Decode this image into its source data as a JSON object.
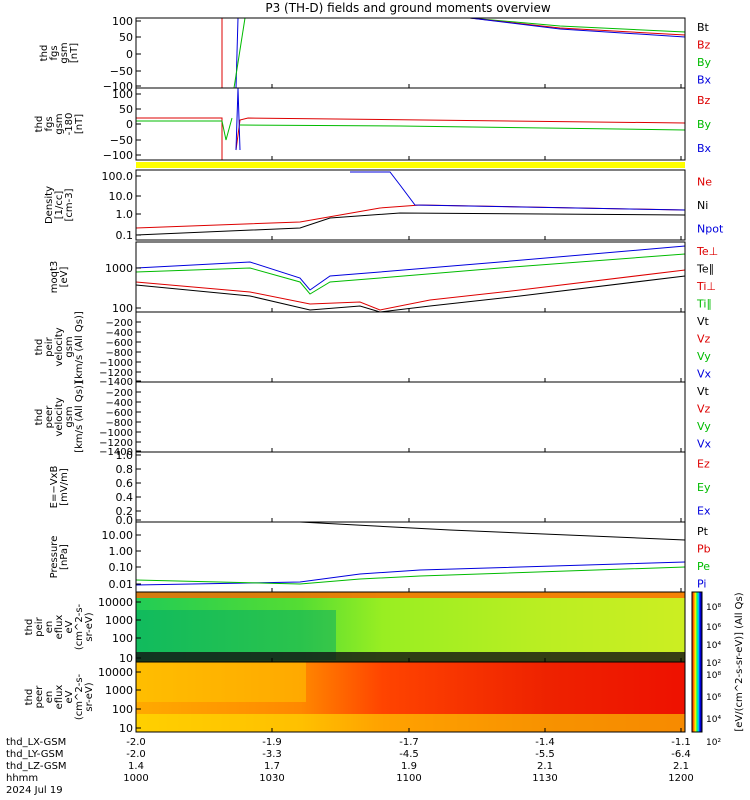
{
  "title": "P3 (TH-D) fields and ground moments overview",
  "chart_data": {
    "type": "line",
    "x_ticks": [
      "1000",
      "1030",
      "1100",
      "1130",
      "1200"
    ],
    "ephemeris": [
      {
        "label": "thd_LX-GSM",
        "values": [
          "-2.0",
          "-1.9",
          "-1.7",
          "-1.4",
          "-1.1"
        ]
      },
      {
        "label": "thd_LY-GSM",
        "values": [
          "-2.0",
          "-3.3",
          "-4.5",
          "-5.5",
          "-6.4"
        ]
      },
      {
        "label": "thd_LZ-GSM",
        "values": [
          "1.4",
          "1.7",
          "1.9",
          "2.1",
          "2.1"
        ]
      },
      {
        "label": "hhmm",
        "values": [
          "1000",
          "1030",
          "1100",
          "1130",
          "1200"
        ]
      }
    ],
    "date_label": "2024 Jul 19",
    "panels": [
      {
        "id": "fgs",
        "ylabel": [
          "thd",
          "fgs",
          "gsm",
          "[nT]"
        ],
        "ticks": [
          "100",
          "50",
          "0",
          "−50",
          "−100"
        ],
        "legend": [
          {
            "t": "Bt",
            "c": "#000000"
          },
          {
            "t": "Bz",
            "c": "#dd0000"
          },
          {
            "t": "By",
            "c": "#00bb00"
          },
          {
            "t": "Bx",
            "c": "#0000dd"
          }
        ]
      },
      {
        "id": "fgs_zoom",
        "ylabel": [
          "thd",
          "fgs",
          "gsm",
          "-180",
          "[nT]"
        ],
        "ticks": [
          "100",
          "50",
          "0",
          "−50",
          "−100"
        ],
        "legend": [
          {
            "t": "Bz",
            "c": "#dd0000"
          },
          {
            "t": "By",
            "c": "#00bb00"
          },
          {
            "t": "Bx",
            "c": "#0000dd"
          }
        ]
      },
      {
        "id": "density",
        "ylabel": [
          "Density",
          "[1/cc]",
          "[cm-3]"
        ],
        "ticks": [
          "100.0",
          "10.0",
          "1.0",
          "0.1"
        ],
        "legend": [
          {
            "t": "Ne",
            "c": "#dd0000"
          },
          {
            "t": "Ni",
            "c": "#000000"
          },
          {
            "t": "Npot",
            "c": "#0000dd"
          }
        ]
      },
      {
        "id": "temperature",
        "ylabel": [
          "moqt3",
          "[eV]"
        ],
        "ticks": [
          "1000",
          "100"
        ],
        "legend": [
          {
            "t": "Te⊥",
            "c": "#dd0000"
          },
          {
            "t": "Te∥",
            "c": "#000000"
          },
          {
            "t": "Ti⊥",
            "c": "#dd0000"
          },
          {
            "t": "Ti∥",
            "c": "#00bb00"
          }
        ]
      },
      {
        "id": "peir_vel",
        "ylabel": [
          "thd",
          "peir",
          "velocity",
          "gsm",
          "[km/s (All Qs)]"
        ],
        "ticks": [
          "−200",
          "−400",
          "−600",
          "−800",
          "−1000",
          "−1200",
          "−1400"
        ],
        "legend": [
          {
            "t": "Vt",
            "c": "#000000"
          },
          {
            "t": "Vz",
            "c": "#dd0000"
          },
          {
            "t": "Vy",
            "c": "#00bb00"
          },
          {
            "t": "Vx",
            "c": "#0000dd"
          }
        ]
      },
      {
        "id": "peer_vel",
        "ylabel": [
          "thd",
          "peer",
          "velocity",
          "gsm",
          "[km/s (All Qs)]"
        ],
        "ticks": [
          "−200",
          "−400",
          "−600",
          "−800",
          "−1000",
          "−1200",
          "−1400"
        ],
        "legend": [
          {
            "t": "Vt",
            "c": "#000000"
          },
          {
            "t": "Vz",
            "c": "#dd0000"
          },
          {
            "t": "Vy",
            "c": "#00bb00"
          },
          {
            "t": "Vx",
            "c": "#0000dd"
          }
        ]
      },
      {
        "id": "efield",
        "ylabel": [
          "E=−VxB",
          "[mV/m]"
        ],
        "ticks": [
          "1.0",
          "0.8",
          "0.6",
          "0.4",
          "0.2",
          "0.0"
        ],
        "legend": [
          {
            "t": "Ez",
            "c": "#dd0000"
          },
          {
            "t": "Ey",
            "c": "#00bb00"
          },
          {
            "t": "Ex",
            "c": "#0000dd"
          }
        ]
      },
      {
        "id": "pressure",
        "ylabel": [
          "Pressure",
          "[nPa]"
        ],
        "ticks": [
          "10.00",
          "1.00",
          "0.10",
          "0.01"
        ],
        "legend": [
          {
            "t": "Pt",
            "c": "#000000"
          },
          {
            "t": "Pb",
            "c": "#dd0000"
          },
          {
            "t": "Pe",
            "c": "#00bb00"
          },
          {
            "t": "Pi",
            "c": "#0000dd"
          }
        ]
      },
      {
        "id": "peir_spec",
        "ylabel": [
          "thd",
          "peir",
          "en",
          "eflux",
          "eV",
          "(cm^2-s-",
          "sr-eV)"
        ],
        "ticks": [
          "10000",
          "1000",
          "100",
          "10"
        ]
      },
      {
        "id": "peer_spec",
        "ylabel": [
          "thd",
          "peer",
          "en",
          "eflux",
          "eV",
          "(cm^2-s-",
          "sr-eV)"
        ],
        "ticks": [
          "10000",
          "1000",
          "100",
          "10"
        ]
      }
    ],
    "colorbar": {
      "label": "[eV/(cm^2-s-sr-eV)] (All Qs)",
      "upper_ticks": [
        "10⁸",
        "10⁶",
        "10⁴",
        "10²"
      ],
      "lower_ticks": [
        "10⁸",
        "10⁶",
        "10⁴",
        "10²"
      ]
    }
  }
}
